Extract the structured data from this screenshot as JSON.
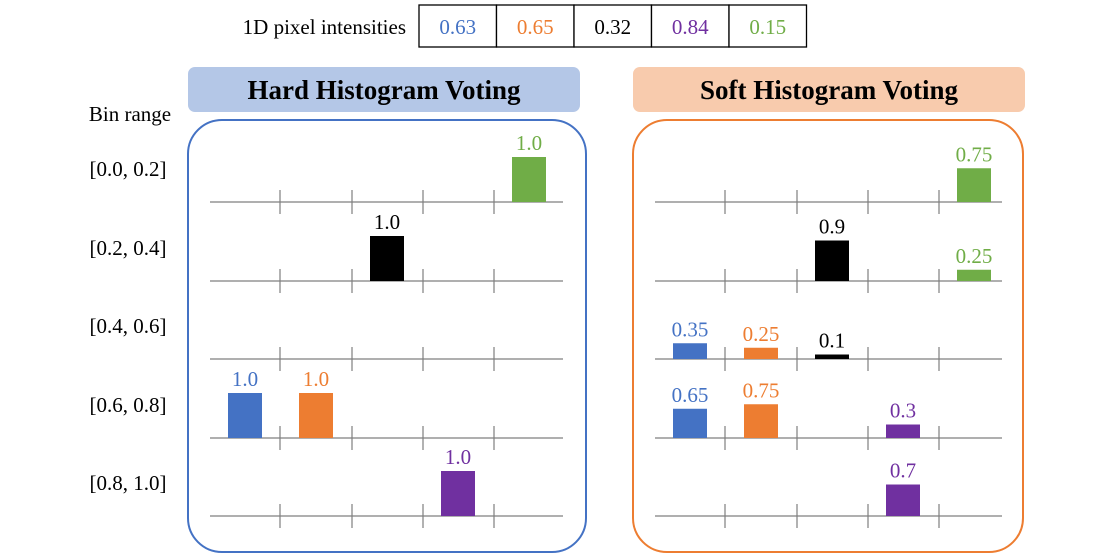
{
  "header": {
    "label": "1D pixel intensities",
    "pixels": [
      {
        "value": "0.63",
        "color": "#4472C4"
      },
      {
        "value": "0.65",
        "color": "#ED7D31"
      },
      {
        "value": "0.32",
        "color": "#000000"
      },
      {
        "value": "0.84",
        "color": "#7030A0"
      },
      {
        "value": "0.15",
        "color": "#70AD47"
      }
    ]
  },
  "bin_range_label": "Bin range",
  "bins": [
    "[0.0, 0.2]",
    "[0.2, 0.4]",
    "[0.4, 0.6]",
    "[0.6, 0.8]",
    "[0.8, 1.0]"
  ],
  "panels": [
    {
      "id": "hard",
      "title": "Hard Histogram Voting",
      "title_bg": "#B4C7E7",
      "border": "#4472C4",
      "bars": [
        {
          "bin": 3,
          "pixel": 0,
          "value": 1.0,
          "label": "1.0"
        },
        {
          "bin": 3,
          "pixel": 1,
          "value": 1.0,
          "label": "1.0"
        },
        {
          "bin": 1,
          "pixel": 2,
          "value": 1.0,
          "label": "1.0"
        },
        {
          "bin": 4,
          "pixel": 3,
          "value": 1.0,
          "label": "1.0"
        },
        {
          "bin": 0,
          "pixel": 4,
          "value": 1.0,
          "label": "1.0"
        }
      ]
    },
    {
      "id": "soft",
      "title": "Soft Histogram Voting",
      "title_bg": "#F8CBAD",
      "border": "#ED7D31",
      "bars": [
        {
          "bin": 2,
          "pixel": 0,
          "value": 0.35,
          "label": "0.35"
        },
        {
          "bin": 3,
          "pixel": 0,
          "value": 0.65,
          "label": "0.65"
        },
        {
          "bin": 2,
          "pixel": 1,
          "value": 0.25,
          "label": "0.25"
        },
        {
          "bin": 3,
          "pixel": 1,
          "value": 0.75,
          "label": "0.75"
        },
        {
          "bin": 1,
          "pixel": 2,
          "value": 0.9,
          "label": "0.9"
        },
        {
          "bin": 2,
          "pixel": 2,
          "value": 0.1,
          "label": "0.1"
        },
        {
          "bin": 3,
          "pixel": 3,
          "value": 0.3,
          "label": "0.3"
        },
        {
          "bin": 4,
          "pixel": 3,
          "value": 0.7,
          "label": "0.7"
        },
        {
          "bin": 0,
          "pixel": 4,
          "value": 0.75,
          "label": "0.75"
        },
        {
          "bin": 1,
          "pixel": 4,
          "value": 0.25,
          "label": "0.25"
        }
      ]
    }
  ]
}
